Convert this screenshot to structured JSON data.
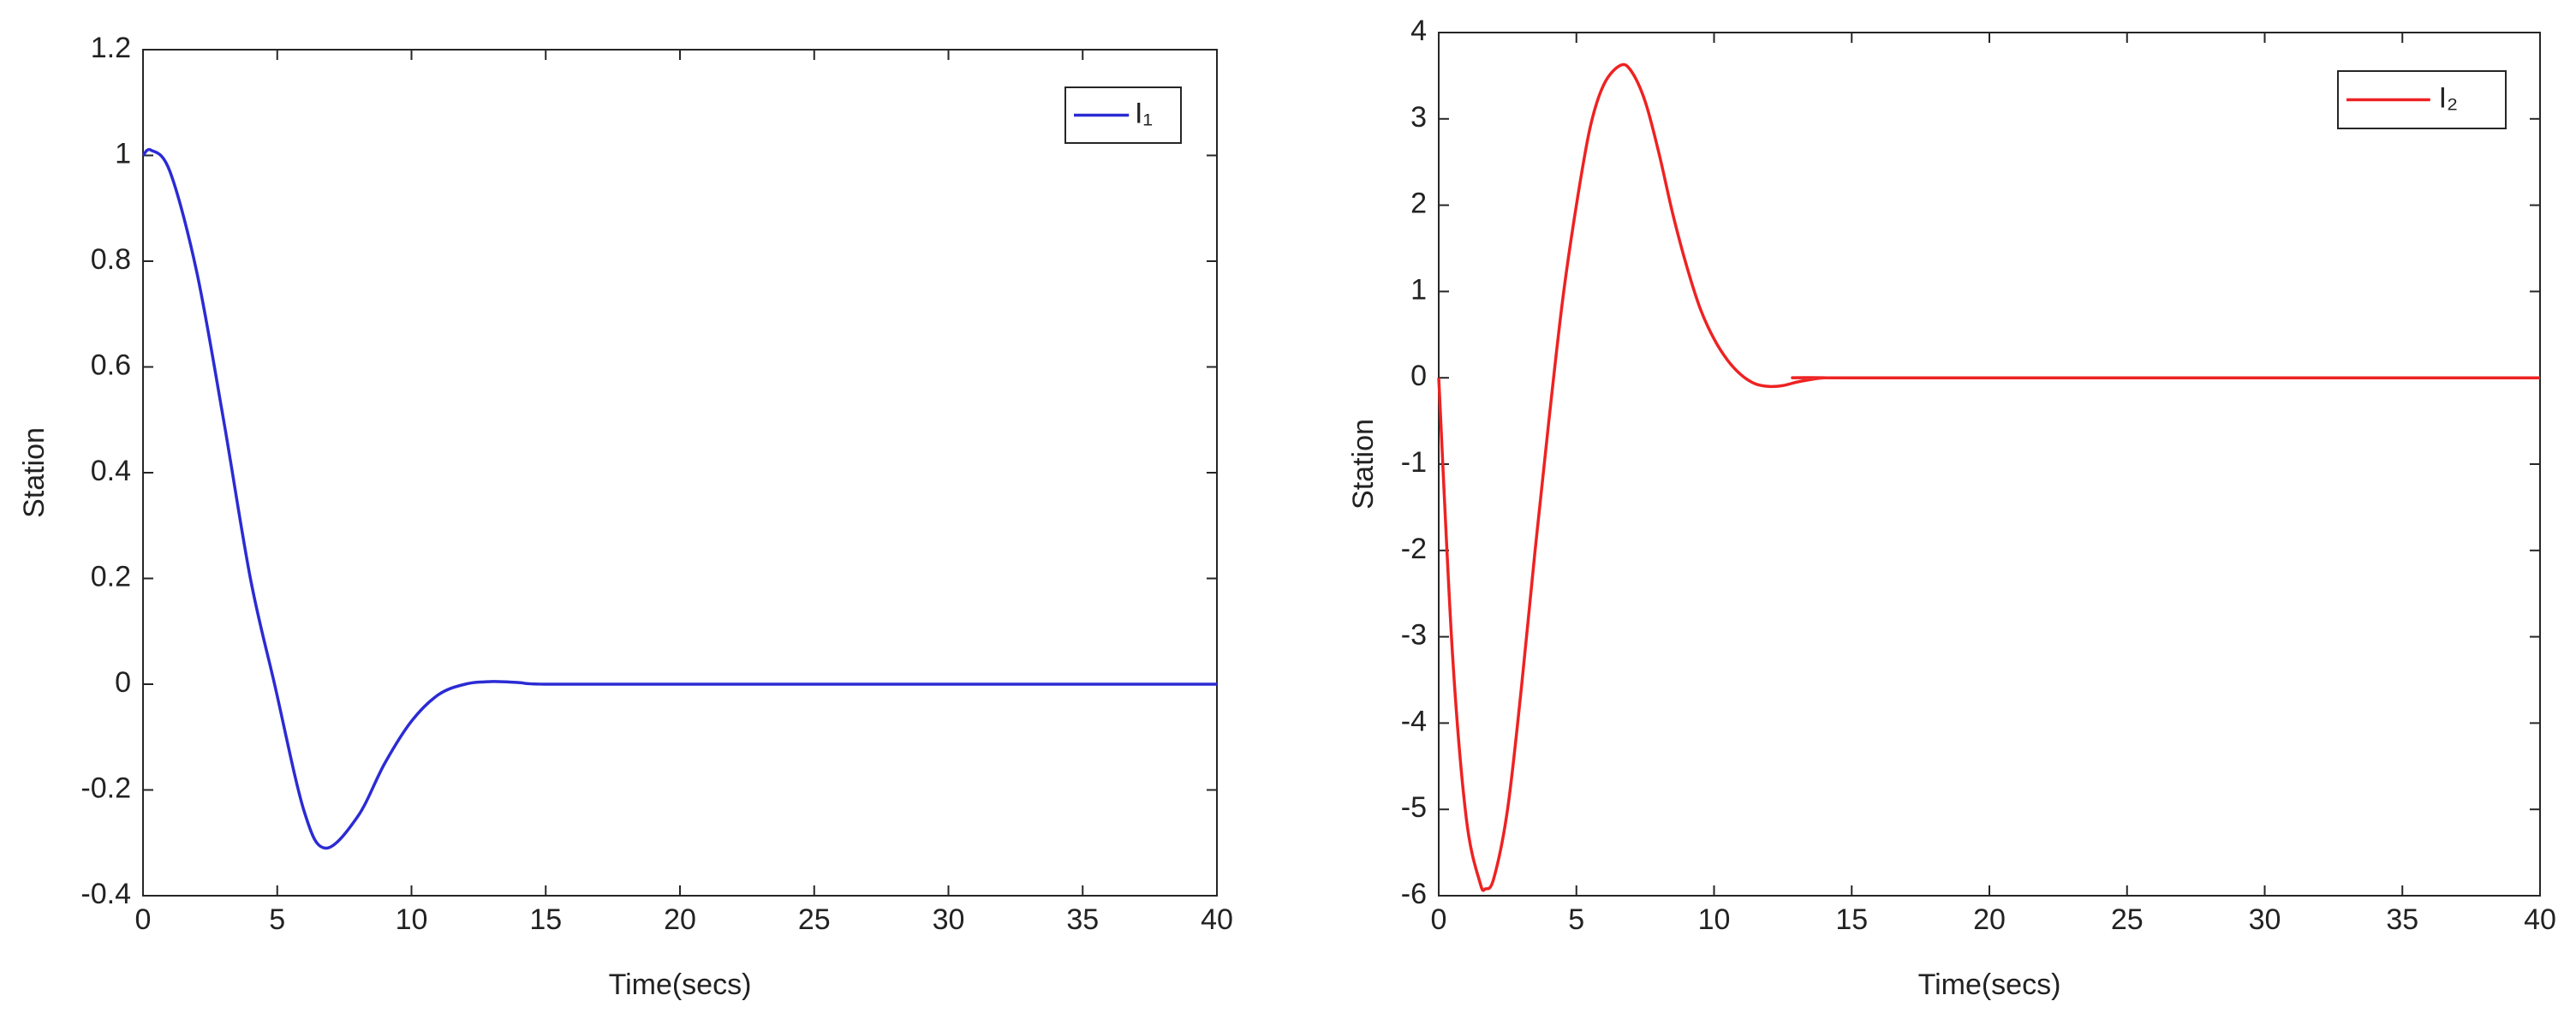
{
  "chart_data": [
    {
      "type": "line",
      "x_label": "Time(secs)",
      "y_label": "Station",
      "x": [
        0,
        0.3,
        1,
        2,
        3,
        4,
        4.9,
        6,
        6.8,
        8,
        9,
        10,
        11,
        12,
        13,
        14,
        15,
        20,
        30,
        40
      ],
      "series": [
        {
          "name": "I₁",
          "color": "#2b2bd4",
          "values": [
            1,
            1.01,
            0.97,
            0.78,
            0.5,
            0.2,
            0,
            -0.24,
            -0.31,
            -0.25,
            -0.15,
            -0.07,
            -0.02,
            0,
            0.005,
            0.003,
            0,
            0,
            0,
            0
          ]
        }
      ],
      "xlim": [
        0,
        40
      ],
      "ylim": [
        -0.4,
        1.2
      ],
      "xticks": [
        0,
        5,
        10,
        15,
        20,
        25,
        30,
        35,
        40
      ],
      "yticks": [
        -0.4,
        -0.2,
        0,
        0.2,
        0.4,
        0.6,
        0.8,
        1,
        1.2
      ],
      "legend": "upper right"
    },
    {
      "type": "line",
      "x_label": "Time(secs)",
      "y_label": "Station",
      "x": [
        0,
        0.5,
        1,
        1.5,
        1.7,
        2,
        2.5,
        3,
        3.5,
        4,
        4.5,
        5,
        5.5,
        6,
        6.6,
        7,
        7.5,
        8,
        8.5,
        9,
        9.5,
        10,
        10.5,
        11,
        11.5,
        12,
        12.5,
        13,
        13.5,
        14,
        15,
        40
      ],
      "series": [
        {
          "name": "I₂",
          "color": "#ee2222",
          "values": [
            0,
            -3.2,
            -5.1,
            -5.85,
            -5.92,
            -5.8,
            -5,
            -3.6,
            -2,
            -0.5,
            0.9,
            2,
            2.9,
            3.4,
            3.62,
            3.55,
            3.2,
            2.6,
            1.9,
            1.3,
            0.8,
            0.45,
            0.2,
            0.03,
            -0.07,
            -0.1,
            -0.09,
            -0.05,
            -0.02,
            0,
            0,
            0
          ]
        }
      ],
      "xlim": [
        0,
        40
      ],
      "ylim": [
        -6,
        4
      ],
      "xticks": [
        0,
        5,
        10,
        15,
        20,
        25,
        30,
        35,
        40
      ],
      "yticks": [
        -6,
        -5,
        -4,
        -3,
        -2,
        -1,
        0,
        1,
        2,
        3,
        4
      ],
      "legend": "upper right"
    }
  ]
}
